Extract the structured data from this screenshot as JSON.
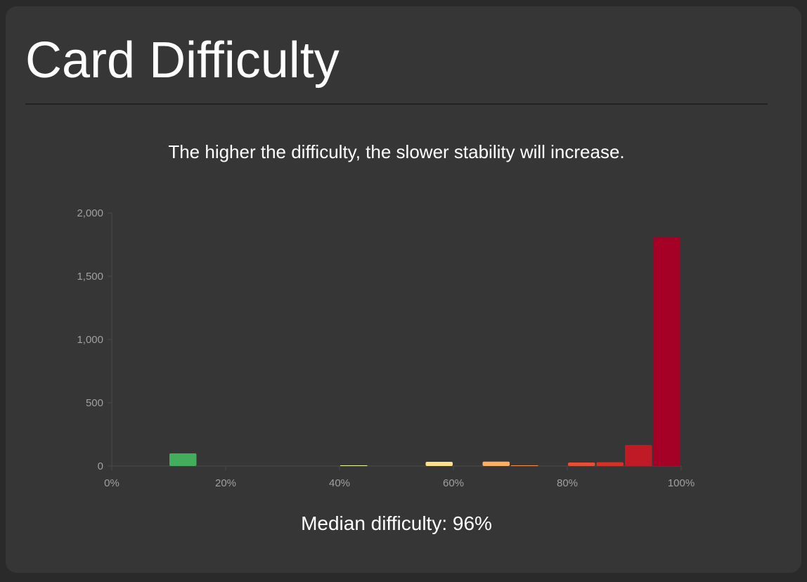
{
  "header": {
    "title": "Card Difficulty"
  },
  "subtitle": "The higher the difficulty, the slower stability will increase.",
  "footer": {
    "median_label": "Median difficulty: 96%"
  },
  "chart_data": {
    "type": "bar",
    "title": "Card Difficulty",
    "xlabel": "",
    "ylabel": "",
    "ylim": [
      0,
      2000
    ],
    "yticks": [
      "0",
      "500",
      "1,000",
      "1,500",
      "2,000"
    ],
    "xticks": [
      "0%",
      "20%",
      "40%",
      "60%",
      "80%",
      "100%"
    ],
    "grid": false,
    "categories": [
      "0-5%",
      "5-10%",
      "10-15%",
      "15-20%",
      "20-25%",
      "25-30%",
      "30-35%",
      "35-40%",
      "40-45%",
      "45-50%",
      "50-55%",
      "55-60%",
      "60-65%",
      "65-70%",
      "70-75%",
      "75-80%",
      "80-85%",
      "85-90%",
      "90-95%",
      "95-100%"
    ],
    "values": [
      0,
      0,
      100,
      0,
      0,
      0,
      0,
      0,
      1,
      0,
      0,
      33,
      0,
      35,
      2,
      0,
      28,
      30,
      167,
      1806
    ],
    "colors": [
      "#1a9850",
      "#2fa654",
      "#43ad5d",
      "#66bd63",
      "#8ccc6a",
      "#a6d96a",
      "#c5e57e",
      "#d9ef8b",
      "#eef6a8",
      "#ffffbf",
      "#fff0a0",
      "#fee08b",
      "#fdc574",
      "#fdae61",
      "#f88c51",
      "#f46d43",
      "#e54f35",
      "#d73027",
      "#c01a27",
      "#a50026"
    ],
    "median": "96%"
  }
}
